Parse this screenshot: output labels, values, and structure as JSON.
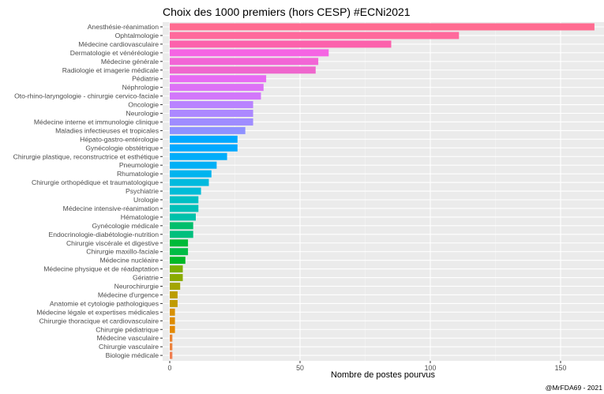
{
  "chart_data": {
    "type": "bar",
    "orientation": "horizontal",
    "title": "Choix des 1000 premiers (hors CESP) #ECNi2021",
    "xlabel": "Nombre de postes pourvus",
    "ylabel": "",
    "xlim": [
      0,
      165
    ],
    "xticks": [
      0,
      50,
      100,
      150
    ],
    "grid": true,
    "caption": "@MrFDA69 - 2021",
    "categories": [
      "Anesthésie-réanimation",
      "Ophtalmologie",
      "Médecine cardiovasculaire",
      "Dermatologie et vénéréologie",
      "Médecine générale",
      "Radiologie et imagerie médicale",
      "Pédiatrie",
      "Néphrologie",
      "Oto-rhino-laryngologie - chirurgie cervico-faciale",
      "Oncologie",
      "Neurologie",
      "Médecine interne et immunologie clinique",
      "Maladies infectieuses et tropicales",
      "Hépato-gastro-entérologie",
      "Gynécologie obstétrique",
      "Chirurgie plastique, reconstructrice et esthétique",
      "Pneumologie",
      "Rhumatologie",
      "Chirurgie orthopédique et traumatologique",
      "Psychiatrie",
      "Urologie",
      "Médecine intensive-réanimation",
      "Hématologie",
      "Gynécologie médicale",
      "Endocrinologie-diabétologie-nutrition",
      "Chirurgie viscérale et digestive",
      "Chirurgie maxillo-faciale",
      "Médecine nucléaire",
      "Médecine physique et de réadaptation",
      "Gériatrie",
      "Neurochirurgie",
      "Médecine d'urgence",
      "Anatomie et cytologie pathologiques",
      "Médecine légale et expertises médicales",
      "Chirurgie thoracique et cardiovasculaire",
      "Chirurgie pédiatrique",
      "Médecine vasculaire",
      "Chirurgie vasculaire",
      "Biologie médicale"
    ],
    "values": [
      163,
      111,
      85,
      61,
      57,
      56,
      37,
      36,
      35,
      32,
      32,
      32,
      29,
      26,
      26,
      22,
      18,
      16,
      15,
      12,
      11,
      11,
      10,
      9,
      9,
      7,
      7,
      6,
      5,
      5,
      4,
      3,
      3,
      2,
      2,
      2,
      1,
      1,
      1
    ],
    "colors": [
      "#FF6C91",
      "#FF699C",
      "#FC61AC",
      "#F564E3",
      "#F265D6",
      "#EF67CD",
      "#E76BF3",
      "#DD71F6",
      "#D277FA",
      "#B983FF",
      "#AC88FF",
      "#9F8CFF",
      "#8F91FF",
      "#00A9FF",
      "#00A9FF",
      "#00ADFA",
      "#00B0F6",
      "#00B4EF",
      "#00BADE",
      "#00BCD8",
      "#00BFC4",
      "#00C0B8",
      "#00C1AA",
      "#00BE6C",
      "#00BF7D",
      "#00BA38",
      "#00BC45",
      "#00B827",
      "#7CAE00",
      "#8AAB00",
      "#A3A500",
      "#BB9D00",
      "#C09B00",
      "#D89000",
      "#DE8C00",
      "#E38900",
      "#EA8331",
      "#EC823C",
      "#F07E50"
    ]
  }
}
